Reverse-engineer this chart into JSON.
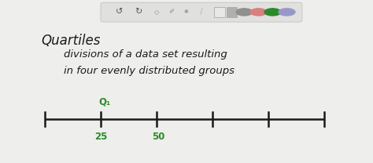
{
  "background_color": "#eeeeec",
  "toolbar_bg": "#e4e4e2",
  "title_text": "Quartiles",
  "subtitle_line1": "divisions of a data set resulting",
  "subtitle_line2": "in four evenly distributed groups",
  "number_line": {
    "q1_label": "Q₁",
    "q1_x_label": "25",
    "q2_x_label": "50",
    "label_color": "#2a8a2a",
    "line_color": "#1a1a1a"
  },
  "font_color": "#1a1a1a",
  "circle_colors": [
    "#909090",
    "#d88080",
    "#2a8a2a",
    "#9898c8"
  ]
}
